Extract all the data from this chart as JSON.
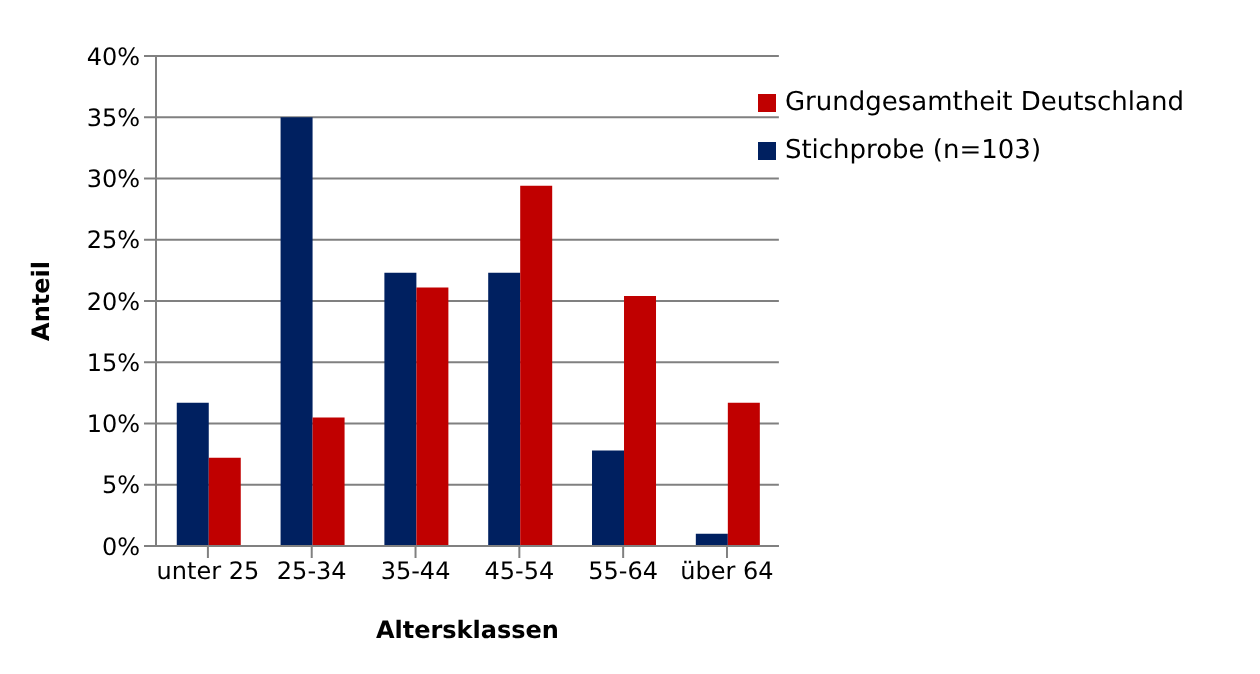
{
  "chart_data": {
    "type": "bar",
    "xlabel": "Altersklassen",
    "ylabel": "Anteil",
    "categories": [
      "unter 25",
      "25-34",
      "35-44",
      "45-54",
      "55-64",
      "über 64"
    ],
    "series": [
      {
        "name": "Stichprobe (n=103)",
        "color": "#002060",
        "values": [
          11.7,
          35,
          22.3,
          22.3,
          7.8,
          1.0
        ]
      },
      {
        "name": "Grundgesamtheit Deutschland",
        "color": "#c00000",
        "values": [
          7.2,
          10.5,
          21.1,
          29.4,
          20.4,
          11.7
        ]
      }
    ],
    "ylim": [
      0,
      40
    ],
    "yticks": [
      {
        "value": 0,
        "label": "0%"
      },
      {
        "value": 5,
        "label": "5%"
      },
      {
        "value": 10,
        "label": "10%"
      },
      {
        "value": 15,
        "label": "15%"
      },
      {
        "value": 20,
        "label": "20%"
      },
      {
        "value": 25,
        "label": "25%"
      },
      {
        "value": 30,
        "label": "30%"
      },
      {
        "value": 35,
        "label": "35%"
      },
      {
        "value": 40,
        "label": "40%"
      }
    ],
    "grid": "y",
    "legend": "top right"
  }
}
